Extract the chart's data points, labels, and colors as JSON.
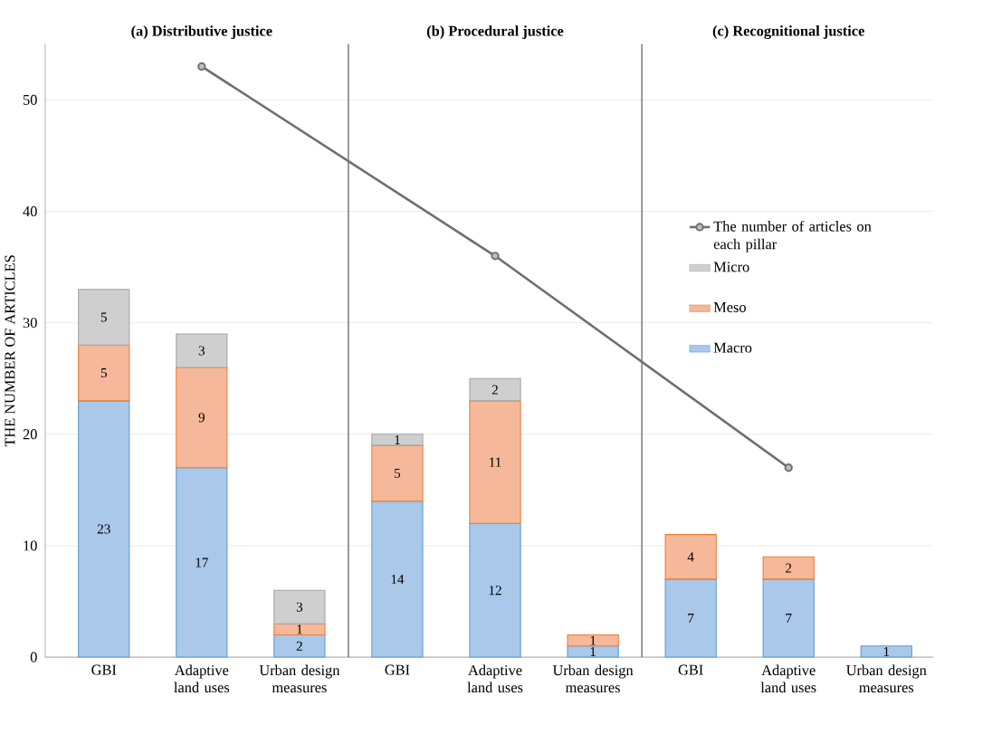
{
  "chart_data": {
    "type": "bar",
    "stacked": true,
    "ylabel": "THE NUMBER OF ARTICLES",
    "categories": [
      "GBI",
      "Adaptive land uses",
      "Urban design measures",
      "GBI",
      "Adaptive land uses",
      "Urban design measures",
      "GBI",
      "Adaptive land uses",
      "Urban design measures"
    ],
    "series": [
      {
        "name": "Macro",
        "color": "#a9c8ea",
        "values": [
          23,
          17,
          2,
          14,
          12,
          1,
          7,
          7,
          1
        ],
        "value_labels": [
          "23",
          "17",
          "2",
          "14",
          "12",
          "1",
          "7",
          "7",
          "1"
        ]
      },
      {
        "name": "Meso",
        "color": "#f6b89a",
        "values": [
          5,
          9,
          1,
          5,
          11,
          1,
          4,
          2,
          null
        ],
        "value_labels": [
          "5",
          "9",
          "1",
          "5",
          "11",
          "1",
          "4",
          "2",
          null
        ]
      },
      {
        "name": "Micro",
        "color": "#cfcfcf",
        "values": [
          5,
          3,
          3,
          1,
          2,
          null,
          null,
          null,
          null
        ],
        "value_labels": [
          "5",
          "3",
          "3",
          "1",
          "2",
          null,
          null,
          null,
          null
        ]
      },
      {
        "name": "The number of articles on each pillar",
        "type": "line",
        "color": "#6f6f6f",
        "values": [
          null,
          53,
          null,
          null,
          36,
          null,
          null,
          17,
          null
        ]
      }
    ],
    "annotations": [
      "(a) Distributive justice",
      "(b) Procedural justice",
      "(c) Recognitional justice"
    ],
    "ylim": [
      0,
      55
    ],
    "yticks": [
      0,
      10,
      20,
      30,
      40,
      50
    ],
    "grid": "y",
    "legend": "right",
    "marker": "circle"
  }
}
